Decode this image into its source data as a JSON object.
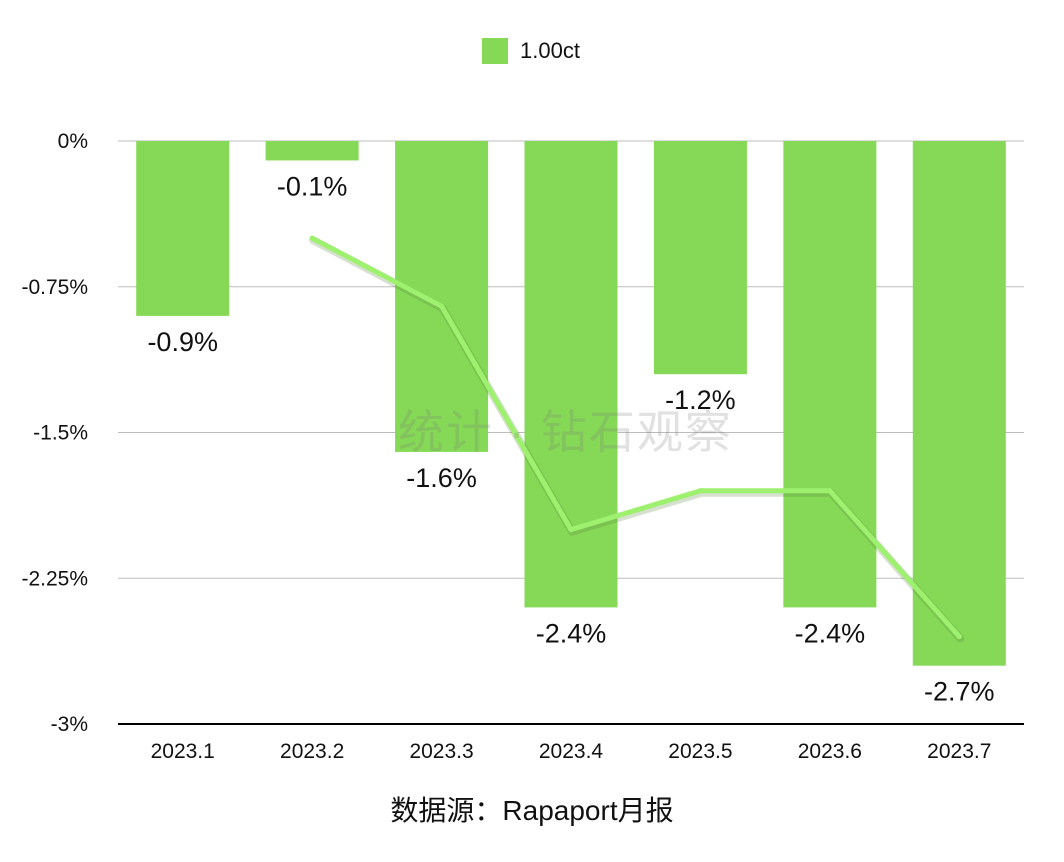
{
  "source_note": "数据源：Rapaport月报",
  "watermark": "统计 · 钻石观察",
  "colors": {
    "bar": "#86d957",
    "line": "#9ef06f",
    "grid": "#bdbdbd",
    "axis": "#000000",
    "text": "#111111"
  },
  "chart_data": {
    "type": "bar",
    "title": "",
    "xlabel": "",
    "ylabel": "",
    "legend": {
      "placement": "top-center"
    },
    "grid": true,
    "categories": [
      "2023.1",
      "2023.2",
      "2023.3",
      "2023.4",
      "2023.5",
      "2023.6",
      "2023.7"
    ],
    "ylim": [
      -3,
      0
    ],
    "yticks": [
      0,
      -0.75,
      -1.5,
      -2.25,
      -3
    ],
    "ytick_labels": [
      "0%",
      "-0.75%",
      "-1.5%",
      "-2.25%",
      "-3%"
    ],
    "series": [
      {
        "name": "1.00ct",
        "type": "bar",
        "values": [
          -0.9,
          -0.1,
          -1.6,
          -2.4,
          -1.2,
          -2.4,
          -2.7
        ],
        "labels": [
          "-0.9%",
          "-0.1%",
          "-1.6%",
          "-2.4%",
          "-1.2%",
          "-2.4%",
          "-2.7%"
        ]
      },
      {
        "type": "line",
        "x": [
          "2023.2",
          "2023.3",
          "2023.4",
          "2023.5",
          "2023.6",
          "2023.7"
        ],
        "values": [
          -0.5,
          -0.85,
          -2.0,
          -1.8,
          -1.8,
          -2.55
        ]
      }
    ]
  }
}
